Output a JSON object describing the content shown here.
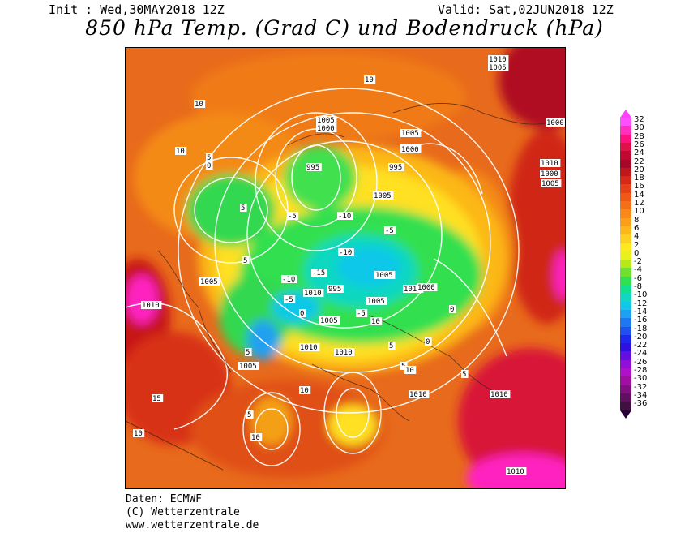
{
  "header": {
    "init": "Init : Wed,30MAY2018 12Z",
    "valid": "Valid: Sat,02JUN2018 12Z",
    "title": "850 hPa Temp. (Grad C) und Bodendruck (hPa)"
  },
  "credits": {
    "line1": "Daten: ECMWF",
    "line2": "(C) Wetterzentrale",
    "line3": "www.wetterzentrale.de"
  },
  "legend": {
    "top_color": "#ff40ff",
    "bottom_color": "#2a003a",
    "steps": [
      {
        "label": "32",
        "color": "#ff50ff"
      },
      {
        "label": "30",
        "color": "#ff30c0"
      },
      {
        "label": "28",
        "color": "#ff1080"
      },
      {
        "label": "26",
        "color": "#e0104a"
      },
      {
        "label": "24",
        "color": "#c00830"
      },
      {
        "label": "22",
        "color": "#a80828"
      },
      {
        "label": "20",
        "color": "#c01818"
      },
      {
        "label": "18",
        "color": "#d82818"
      },
      {
        "label": "16",
        "color": "#e84018"
      },
      {
        "label": "14",
        "color": "#f05818"
      },
      {
        "label": "12",
        "color": "#f47018"
      },
      {
        "label": "10",
        "color": "#f88818"
      },
      {
        "label": "8",
        "color": "#faa018"
      },
      {
        "label": "6",
        "color": "#fcb818"
      },
      {
        "label": "4",
        "color": "#fed020"
      },
      {
        "label": "2",
        "color": "#ffe820"
      },
      {
        "label": "0",
        "color": "#e8f020"
      },
      {
        "label": "-2",
        "color": "#b8e818"
      },
      {
        "label": "-4",
        "color": "#70e030"
      },
      {
        "label": "-6",
        "color": "#30e050"
      },
      {
        "label": "-8",
        "color": "#10e090"
      },
      {
        "label": "-10",
        "color": "#10d8c0"
      },
      {
        "label": "-12",
        "color": "#10c8e8"
      },
      {
        "label": "-14",
        "color": "#20a0f0"
      },
      {
        "label": "-16",
        "color": "#2078f0"
      },
      {
        "label": "-18",
        "color": "#2050f0"
      },
      {
        "label": "-20",
        "color": "#2028f0"
      },
      {
        "label": "-22",
        "color": "#3010e0"
      },
      {
        "label": "-24",
        "color": "#6010e0"
      },
      {
        "label": "-26",
        "color": "#9010d8"
      },
      {
        "label": "-28",
        "color": "#b010c8"
      },
      {
        "label": "-30",
        "color": "#a010a0"
      },
      {
        "label": "-32",
        "color": "#801080"
      },
      {
        "label": "-34",
        "color": "#601060"
      },
      {
        "label": "-36",
        "color": "#401040"
      }
    ]
  },
  "map": {
    "isobar_labels": [
      "1005",
      "1000",
      "995",
      "1010",
      "1005",
      "1000",
      "995",
      "1010",
      "1005",
      "1000",
      "1010",
      "1005",
      "1000",
      "1005",
      "1010",
      "1010",
      "1005",
      "1010",
      "1005",
      "1005",
      "1010",
      "1010",
      "1005",
      "1010",
      "1010",
      "1010",
      "1005",
      "995",
      "1000"
    ],
    "isotherm_labels": [
      "10",
      "10",
      "5",
      "0",
      "5",
      "-5",
      "-10",
      "-15",
      "-10",
      "-5",
      "0",
      "5",
      "10",
      "10",
      "5",
      "0",
      "-5",
      "-10",
      "5",
      "10",
      "10",
      "5",
      "0",
      "5",
      "-5",
      "10",
      "15",
      "10",
      "5"
    ]
  }
}
